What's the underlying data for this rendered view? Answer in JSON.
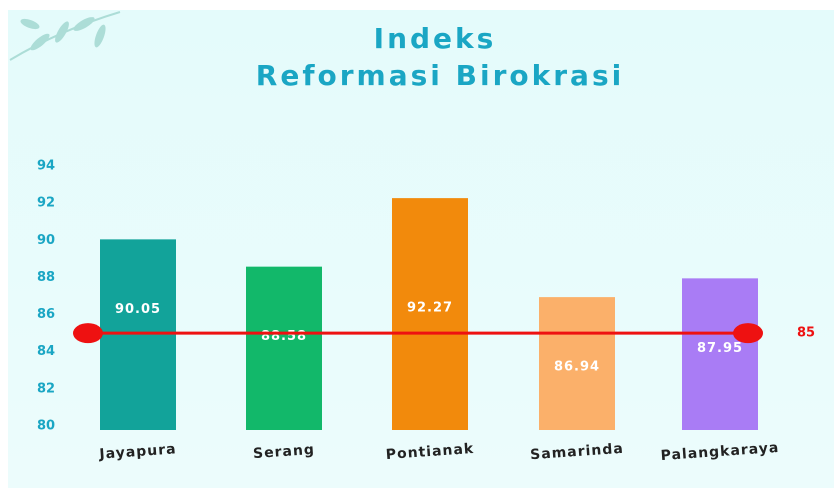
{
  "chart_data": {
    "type": "bar",
    "title": [
      "Indeks",
      "Reformasi Birokrasi"
    ],
    "categories": [
      "Jayapura",
      "Serang",
      "Pontianak",
      "Samarinda",
      "Palangkaraya"
    ],
    "values": [
      90.05,
      88.58,
      92.27,
      86.94,
      87.95
    ],
    "colors": [
      "#12a39a",
      "#12b86a",
      "#f28a0c",
      "#fbb06a",
      "#a97cf5"
    ],
    "ylim": [
      80,
      94
    ],
    "yticks": [
      80,
      82,
      84,
      86,
      88,
      90,
      92,
      94
    ],
    "reference_line": {
      "value": 85,
      "color": "#ee1111"
    }
  }
}
